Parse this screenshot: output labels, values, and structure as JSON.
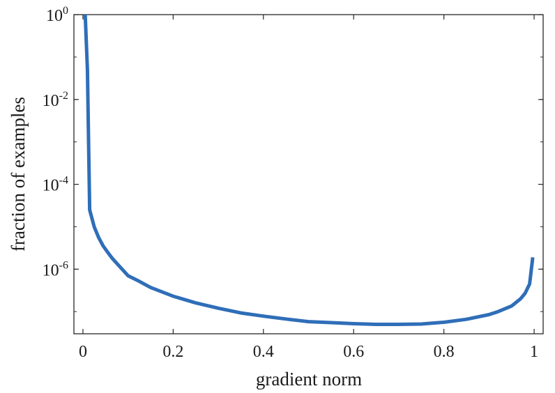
{
  "chart_data": {
    "type": "line",
    "title": "",
    "xlabel": "gradient norm",
    "ylabel": "fraction of examples",
    "xlim": [
      -0.02,
      1.02
    ],
    "ylim": [
      3e-08,
      1
    ],
    "yscale": "log",
    "grid": false,
    "legend": "none",
    "x_ticks": [
      {
        "value": 0,
        "label": "0"
      },
      {
        "value": 0.2,
        "label": "0.2"
      },
      {
        "value": 0.4,
        "label": "0.4"
      },
      {
        "value": 0.6,
        "label": "0.6"
      },
      {
        "value": 0.8,
        "label": "0.8"
      },
      {
        "value": 1,
        "label": "1"
      }
    ],
    "y_ticks": [
      {
        "value": 1,
        "base": "10",
        "exp": "0"
      },
      {
        "value": 0.01,
        "base": "10",
        "exp": "-2"
      },
      {
        "value": 0.0001,
        "base": "10",
        "exp": "-4"
      },
      {
        "value": 1e-06,
        "base": "10",
        "exp": "-6"
      }
    ],
    "series": [
      {
        "color": "#2f6eb8",
        "x": [
          0.005,
          0.01,
          0.015,
          0.025,
          0.035,
          0.045,
          0.055,
          0.065,
          0.08,
          0.1,
          0.12,
          0.15,
          0.2,
          0.25,
          0.3,
          0.35,
          0.4,
          0.45,
          0.5,
          0.55,
          0.6,
          0.65,
          0.7,
          0.75,
          0.8,
          0.85,
          0.9,
          0.92,
          0.95,
          0.97,
          0.98,
          0.99,
          0.997
        ],
        "y": [
          1.0,
          0.05,
          2.5e-05,
          1e-05,
          5.5e-06,
          3.5e-06,
          2.5e-06,
          1.8e-06,
          1.2e-06,
          7e-07,
          5.5e-07,
          3.7e-07,
          2.3e-07,
          1.6e-07,
          1.2e-07,
          9.3e-08,
          7.8e-08,
          6.7e-08,
          5.8e-08,
          5.5e-08,
          5.2e-08,
          5e-08,
          5e-08,
          5.1e-08,
          5.6e-08,
          6.6e-08,
          8.5e-08,
          1e-07,
          1.35e-07,
          2e-07,
          2.7e-07,
          4.5e-07,
          1.9e-06
        ]
      }
    ]
  }
}
